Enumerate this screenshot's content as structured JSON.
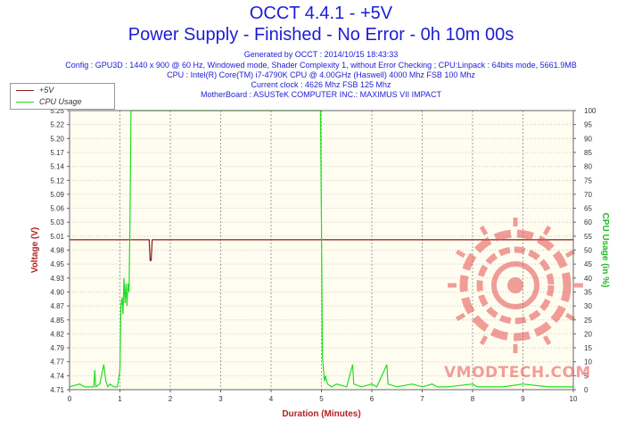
{
  "header": {
    "title": "OCCT 4.4.1 - +5V",
    "subtitle": "Power Supply - Finished - No Error - 0h 10m 00s",
    "info_lines": [
      "Generated by OCCT : 2014/10/15 18:43:33",
      "Config : GPU3D : 1440 x 900 @ 60 Hz, Windowed mode, Shader Complexity 1, without Error Checking ; CPU:Linpack : 64bits mode, 5661.9MB",
      "CPU : Intel(R) Core(TM) i7-4790K CPU @ 4.00GHz (Haswell) 4000 Mhz FSB 100 Mhz",
      "Current clock : 4626 Mhz FSB 125 Mhz",
      "MotherBoard : ASUSTeK COMPUTER INC.: MAXIMUS VII IMPACT"
    ]
  },
  "watermark": {
    "text": "VMODTECH.COM"
  },
  "colors": {
    "voltage": "#8b1a1a",
    "cpu": "#22dd22",
    "plot_bg": "#fffdf0",
    "grid": "#a0a0a0"
  },
  "chart_data": {
    "type": "line",
    "xlabel": "Duration (Minutes)",
    "ylabel": "Voltage (V)",
    "y2label": "CPU Usage (in %)",
    "xlim": [
      0,
      10
    ],
    "ylim": [
      4.71,
      5.25
    ],
    "y2lim": [
      0,
      100
    ],
    "x_ticks": [
      "0",
      "1",
      "2",
      "3",
      "4",
      "5",
      "6",
      "7",
      "8",
      "9",
      "10"
    ],
    "y_ticks": [
      "4.71",
      "4.74",
      "4.77",
      "4.79",
      "4.82",
      "4.85",
      "4.87",
      "4.90",
      "4.93",
      "4.95",
      "4.98",
      "5.01",
      "5.03",
      "5.06",
      "5.09",
      "5.12",
      "5.14",
      "5.17",
      "5.20",
      "5.22",
      "5.25"
    ],
    "y2_ticks": [
      "0",
      "5",
      "10",
      "15",
      "20",
      "25",
      "30",
      "35",
      "40",
      "45",
      "50",
      "55",
      "60",
      "65",
      "70",
      "75",
      "80",
      "85",
      "90",
      "95",
      "100"
    ],
    "legend": [
      "+5V",
      "CPU Usage"
    ],
    "series": [
      {
        "name": "+5V",
        "axis": "left",
        "x": [
          0,
          1.58,
          1.6,
          1.62,
          1.64,
          10
        ],
        "y": [
          5.0,
          5.0,
          4.96,
          4.96,
          5.0,
          5.0
        ]
      },
      {
        "name": "CPU Usage",
        "axis": "right",
        "x": [
          0,
          0.2,
          0.3,
          0.4,
          0.48,
          0.5,
          0.52,
          0.6,
          0.68,
          0.72,
          0.76,
          0.8,
          0.88,
          0.95,
          1.0,
          1.02,
          1.04,
          1.06,
          1.08,
          1.1,
          1.12,
          1.14,
          1.16,
          1.18,
          1.2,
          1.22,
          1.25,
          1.3,
          2,
          3,
          4,
          4.98,
          5.0,
          5.02,
          5.04,
          5.06,
          5.08,
          5.12,
          5.2,
          5.3,
          5.5,
          5.62,
          5.64,
          5.8,
          6.0,
          6.1,
          6.3,
          6.32,
          6.5,
          6.8,
          7.0,
          7.2,
          7.3,
          7.5,
          8.0,
          8.1,
          8.3,
          8.6,
          9.0,
          9.5,
          10
        ],
        "y": [
          1,
          2,
          1,
          1,
          1,
          7,
          1,
          2,
          9,
          3,
          1,
          2,
          1,
          1,
          7,
          30,
          33,
          27,
          40,
          31,
          38,
          30,
          38,
          35,
          60,
          100,
          100,
          100,
          100,
          100,
          100,
          100,
          60,
          12,
          7,
          3,
          5,
          2,
          1,
          2,
          1,
          9,
          2,
          1,
          2,
          1,
          9,
          2,
          1,
          2,
          1,
          2,
          1,
          1,
          2,
          1,
          1,
          1,
          2,
          1,
          1
        ]
      }
    ]
  }
}
